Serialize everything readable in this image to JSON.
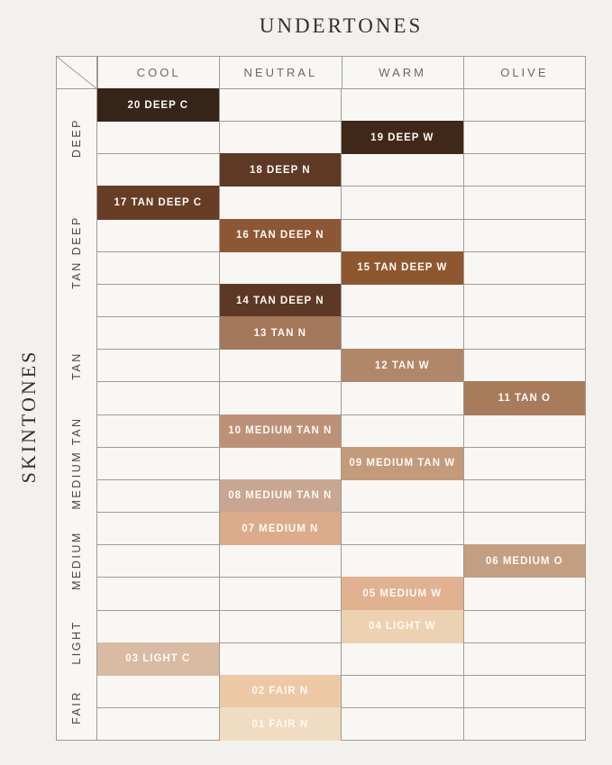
{
  "title": "UNDERTONES",
  "side_label": "SKINTONES",
  "colors": {
    "background": "#f3f1ee",
    "cell_background": "#f8f7f4",
    "grid_line": "#a09b94",
    "header_text": "#6d6963",
    "title_text": "#33302b",
    "cell_text": "#fdfaf6"
  },
  "chart_data": {
    "type": "table",
    "title": "UNDERTONES",
    "ylabel": "SKINTONES",
    "columns": [
      "COOL",
      "NEUTRAL",
      "WARM",
      "OLIVE"
    ],
    "row_groups": [
      {
        "label": "DEEP",
        "rows": 3
      },
      {
        "label": "TAN DEEP",
        "rows": 4
      },
      {
        "label": "TAN",
        "rows": 3
      },
      {
        "label": "MEDIUM TAN",
        "rows": 3
      },
      {
        "label": "MEDIUM",
        "rows": 3
      },
      {
        "label": "LIGHT",
        "rows": 2
      },
      {
        "label": "FAIR",
        "rows": 2
      }
    ],
    "total_rows": 20,
    "cells": [
      {
        "row": 1,
        "col": 0,
        "label": "20 DEEP C",
        "color": "#362419"
      },
      {
        "row": 2,
        "col": 2,
        "label": "19 DEEP W",
        "color": "#3f2817"
      },
      {
        "row": 3,
        "col": 1,
        "label": "18 DEEP N",
        "color": "#5e3a26"
      },
      {
        "row": 4,
        "col": 0,
        "label": "17 TAN DEEP C",
        "color": "#673d26"
      },
      {
        "row": 5,
        "col": 1,
        "label": "16 TAN DEEP N",
        "color": "#8d5736"
      },
      {
        "row": 6,
        "col": 2,
        "label": "15 TAN DEEP W",
        "color": "#8f5730"
      },
      {
        "row": 7,
        "col": 1,
        "label": "14 TAN DEEP N",
        "color": "#5d3826"
      },
      {
        "row": 8,
        "col": 1,
        "label": "13 TAN N",
        "color": "#a5775a"
      },
      {
        "row": 9,
        "col": 2,
        "label": "12 TAN W",
        "color": "#b08768"
      },
      {
        "row": 10,
        "col": 3,
        "label": "11 TAN O",
        "color": "#a87b5a"
      },
      {
        "row": 11,
        "col": 1,
        "label": "10 MEDIUM TAN N",
        "color": "#bd9178"
      },
      {
        "row": 12,
        "col": 2,
        "label": "09 MEDIUM TAN W",
        "color": "#c39b79"
      },
      {
        "row": 13,
        "col": 1,
        "label": "08 MEDIUM TAN N",
        "color": "#c9a691"
      },
      {
        "row": 14,
        "col": 1,
        "label": "07 MEDIUM N",
        "color": "#dcab8b"
      },
      {
        "row": 15,
        "col": 3,
        "label": "06 MEDIUM O",
        "color": "#c49e80"
      },
      {
        "row": 16,
        "col": 2,
        "label": "05 MEDIUM W",
        "color": "#e0b28f"
      },
      {
        "row": 17,
        "col": 2,
        "label": "04 LIGHT W",
        "color": "#ecd2b2"
      },
      {
        "row": 18,
        "col": 0,
        "label": "03 LIGHT C",
        "color": "#d8bba2"
      },
      {
        "row": 19,
        "col": 1,
        "label": "02 FAIR N",
        "color": "#ecc9a4"
      },
      {
        "row": 20,
        "col": 1,
        "label": "01 FAIR N",
        "color": "#f0dcc2"
      }
    ]
  }
}
